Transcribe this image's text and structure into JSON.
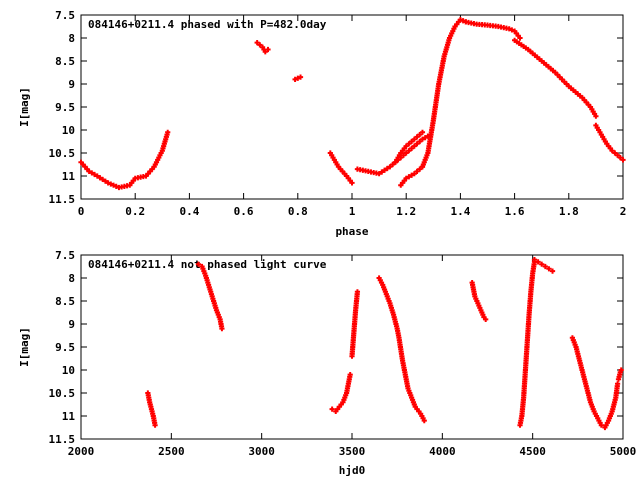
{
  "chart_data": [
    {
      "type": "scatter",
      "title": "084146+0211.4 phased with P=482.0day",
      "xlabel": "phase",
      "ylabel": "I[mag]",
      "xlim": [
        0,
        2
      ],
      "ylim": [
        11.5,
        7.5
      ],
      "y_inverted": true,
      "xticks": [
        "0",
        "0.2",
        "0.4",
        "0.6",
        "0.8",
        "1",
        "1.2",
        "1.4",
        "1.6",
        "1.8",
        "2"
      ],
      "xtick_values": [
        0,
        0.2,
        0.4,
        0.6,
        0.8,
        1.0,
        1.2,
        1.4,
        1.6,
        1.8,
        2.0
      ],
      "yticks": [
        "7.5",
        "8",
        "8.5",
        "9",
        "9.5",
        "10",
        "10.5",
        "11",
        "11.5"
      ],
      "ytick_values": [
        7.5,
        8,
        8.5,
        9,
        9.5,
        10,
        10.5,
        11,
        11.5
      ],
      "point_color": "#ff0000",
      "point_shape": "plus",
      "segments": [
        {
          "x": [
            0.0,
            0.03,
            0.06,
            0.1,
            0.14,
            0.18,
            0.2,
            0.24,
            0.27,
            0.3,
            0.32
          ],
          "y": [
            10.7,
            10.9,
            11.0,
            11.15,
            11.25,
            11.2,
            11.05,
            11.0,
            10.8,
            10.45,
            10.05
          ]
        },
        {
          "x": [
            0.65,
            0.67,
            0.68,
            0.69
          ],
          "y": [
            8.1,
            8.2,
            8.3,
            8.25
          ]
        },
        {
          "x": [
            0.79,
            0.81
          ],
          "y": [
            8.9,
            8.85
          ]
        },
        {
          "x": [
            0.92,
            0.95,
            0.98,
            1.0
          ],
          "y": [
            10.5,
            10.8,
            11.0,
            11.15
          ]
        },
        {
          "x": [
            1.02,
            1.06,
            1.1,
            1.14,
            1.18,
            1.22,
            1.26,
            1.29
          ],
          "y": [
            10.85,
            10.9,
            10.95,
            10.8,
            10.6,
            10.4,
            10.2,
            10.1
          ]
        },
        {
          "x": [
            1.16,
            1.18,
            1.2,
            1.23,
            1.26
          ],
          "y": [
            10.7,
            10.5,
            10.35,
            10.2,
            10.05
          ]
        },
        {
          "x": [
            1.18,
            1.2,
            1.23,
            1.26
          ],
          "y": [
            11.2,
            11.05,
            10.95,
            10.8
          ]
        },
        {
          "x": [
            1.26,
            1.28,
            1.3,
            1.32,
            1.34,
            1.36,
            1.38,
            1.4,
            1.42
          ],
          "y": [
            10.8,
            10.5,
            9.8,
            9.0,
            8.4,
            8.0,
            7.75,
            7.6,
            7.65
          ]
        },
        {
          "x": [
            1.42,
            1.46,
            1.5,
            1.54,
            1.58,
            1.6,
            1.62
          ],
          "y": [
            7.65,
            7.7,
            7.72,
            7.75,
            7.8,
            7.85,
            8.0
          ]
        },
        {
          "x": [
            1.6,
            1.65,
            1.7,
            1.75,
            1.8,
            1.85,
            1.88,
            1.9
          ],
          "y": [
            8.05,
            8.25,
            8.5,
            8.75,
            9.05,
            9.3,
            9.5,
            9.7
          ]
        },
        {
          "x": [
            1.9,
            1.92,
            1.94,
            1.96,
            1.98,
            2.0
          ],
          "y": [
            9.9,
            10.1,
            10.3,
            10.45,
            10.55,
            10.65
          ]
        }
      ]
    },
    {
      "type": "scatter",
      "title": "084146+0211.4 not phased light curve",
      "xlabel": "hjd0",
      "ylabel": "I[mag]",
      "xlim": [
        2000,
        5000
      ],
      "ylim": [
        11.5,
        7.5
      ],
      "y_inverted": true,
      "xticks": [
        "2000",
        "2500",
        "3000",
        "3500",
        "4000",
        "4500",
        "5000"
      ],
      "xtick_values": [
        2000,
        2500,
        3000,
        3500,
        4000,
        4500,
        5000
      ],
      "yticks": [
        "7.5",
        "8",
        "8.5",
        "9",
        "9.5",
        "10",
        "10.5",
        "11",
        "11.5"
      ],
      "ytick_values": [
        7.5,
        8,
        8.5,
        9,
        9.5,
        10,
        10.5,
        11,
        11.5
      ],
      "point_color": "#ff0000",
      "point_shape": "plus",
      "segments": [
        {
          "x": [
            2370,
            2380,
            2390,
            2400,
            2410
          ],
          "y": [
            10.5,
            10.7,
            10.85,
            11.0,
            11.2
          ]
        },
        {
          "x": [
            2650,
            2670,
            2690,
            2710,
            2730,
            2750,
            2770,
            2780
          ],
          "y": [
            7.7,
            7.75,
            7.95,
            8.2,
            8.45,
            8.7,
            8.9,
            9.1
          ]
        },
        {
          "x": [
            3390,
            3410,
            3430,
            3450,
            3470,
            3480,
            3490
          ],
          "y": [
            10.85,
            10.9,
            10.8,
            10.7,
            10.5,
            10.3,
            10.1
          ]
        },
        {
          "x": [
            3500,
            3510,
            3520,
            3530
          ],
          "y": [
            9.7,
            9.2,
            8.7,
            8.3
          ]
        },
        {
          "x": [
            3650,
            3670,
            3690,
            3710,
            3730,
            3750,
            3760,
            3770,
            3780,
            3790,
            3800,
            3810,
            3830,
            3850,
            3880,
            3900
          ],
          "y": [
            8.0,
            8.15,
            8.35,
            8.55,
            8.8,
            9.1,
            9.3,
            9.55,
            9.8,
            10.0,
            10.2,
            10.4,
            10.6,
            10.8,
            10.95,
            11.1
          ]
        },
        {
          "x": [
            4165,
            4170,
            4175,
            4180,
            4230,
            4240
          ],
          "y": [
            8.1,
            8.2,
            8.3,
            8.4,
            8.85,
            8.9
          ]
        },
        {
          "x": [
            4430,
            4440,
            4450,
            4460,
            4470,
            4480,
            4490,
            4500,
            4510
          ],
          "y": [
            11.2,
            11.0,
            10.6,
            10.0,
            9.4,
            8.8,
            8.3,
            7.9,
            7.65
          ]
        },
        {
          "x": [
            4510,
            4530,
            4550,
            4570,
            4590,
            4610
          ],
          "y": [
            7.6,
            7.65,
            7.7,
            7.75,
            7.8,
            7.85
          ]
        },
        {
          "x": [
            4720,
            4740,
            4760,
            4780,
            4800,
            4820,
            4840,
            4860,
            4880,
            4900,
            4920,
            4940,
            4960,
            4970
          ],
          "y": [
            9.3,
            9.5,
            9.8,
            10.1,
            10.4,
            10.7,
            10.9,
            11.05,
            11.2,
            11.25,
            11.1,
            10.9,
            10.6,
            10.3
          ]
        },
        {
          "x": [
            4975,
            4985,
            4990
          ],
          "y": [
            10.2,
            10.05,
            10.0
          ]
        }
      ]
    }
  ]
}
